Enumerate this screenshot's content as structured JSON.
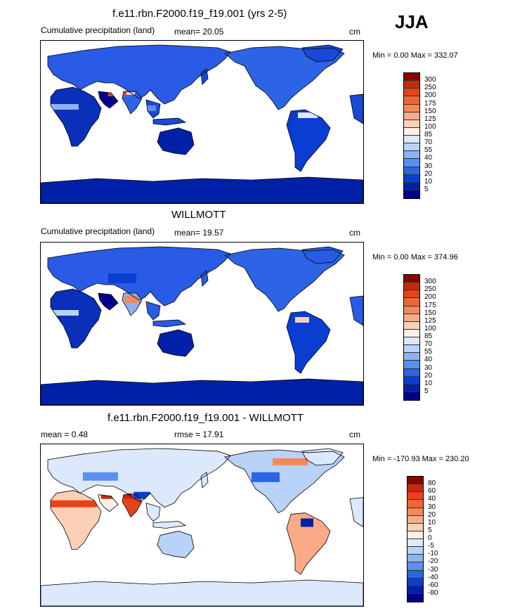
{
  "season": "JJA",
  "panels": [
    {
      "title": "f.e11.rbn.F2000.f19_f19.001 (yrs 2-5)",
      "left_label": "Cumulative precipitation (land)",
      "center_label": "mean=  20.05",
      "unit": "cm",
      "minmax": "Min =   0.00 Max = 332.07",
      "type": "precip"
    },
    {
      "title": "WILLMOTT",
      "left_label": "Cumulative precipitation (land)",
      "center_label": "mean=  19.57",
      "unit": "cm",
      "minmax": "Min =   0.00 Max = 374.96",
      "type": "precip"
    },
    {
      "title": "f.e11.rbn.F2000.f19_f19.001 - WILLMOTT",
      "left_label": "mean =   0.48",
      "center_label": "rmse =  17.91",
      "unit": "cm",
      "minmax": "Min = -170.93 Max = 230.20",
      "type": "diff"
    }
  ],
  "colorbars": {
    "precip": {
      "labels": [
        "300",
        "250",
        "200",
        "175",
        "150",
        "125",
        "100",
        "85",
        "70",
        "55",
        "40",
        "30",
        "20",
        "10",
        "5"
      ],
      "colors": [
        "#8b0000",
        "#c62a0a",
        "#e8421b",
        "#f26532",
        "#f6885a",
        "#f9ab88",
        "#fcd0b6",
        "#fdf0e6",
        "#dce8fb",
        "#b9d2f7",
        "#8cb2f1",
        "#5b8ff0",
        "#2d64e6",
        "#0a3dd2",
        "#0020a8",
        "#00008b"
      ]
    },
    "diff": {
      "labels": [
        "80",
        "60",
        "40",
        "30",
        "20",
        "10",
        "5",
        "0",
        "-5",
        "-10",
        "-20",
        "-30",
        "-40",
        "-60",
        "-80"
      ],
      "colors": [
        "#8b0000",
        "#c62a0a",
        "#e8421b",
        "#f26532",
        "#f6885a",
        "#f9ab88",
        "#fcd0b6",
        "#fdf0e6",
        "#dce8fb",
        "#b9d2f7",
        "#8cb2f1",
        "#5b8ff0",
        "#2d64e6",
        "#0a3dd2",
        "#0020a8",
        "#00008b"
      ]
    }
  }
}
